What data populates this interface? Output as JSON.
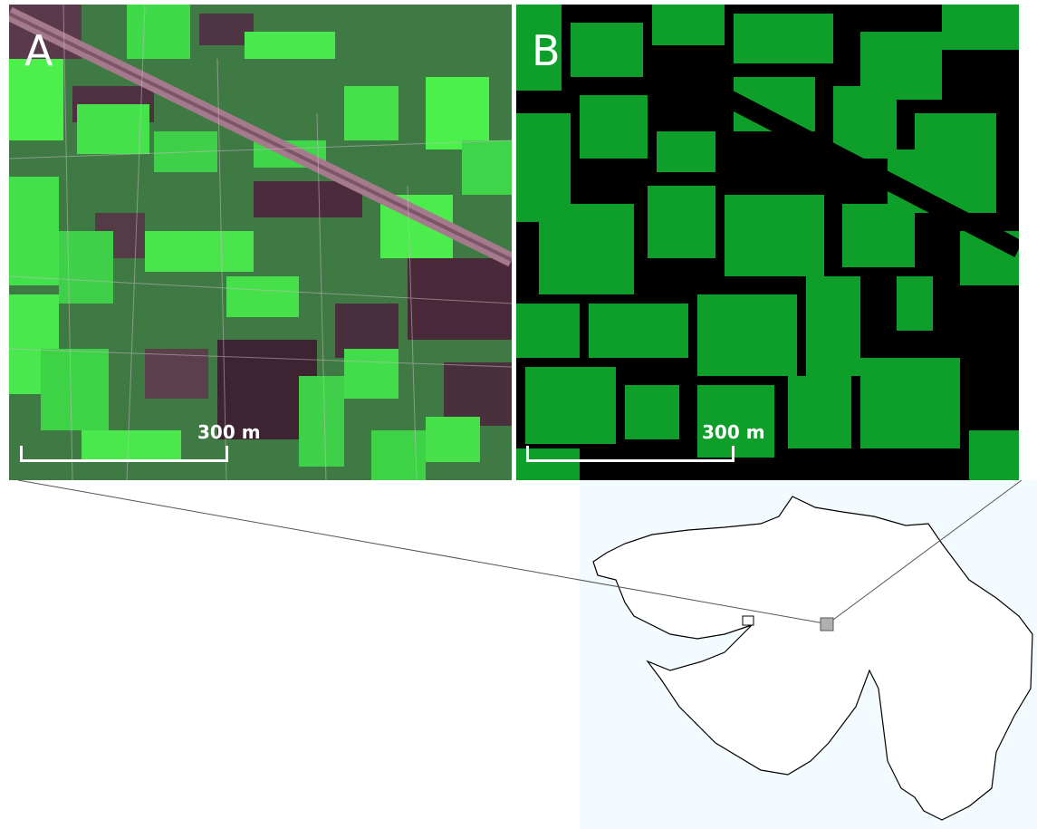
{
  "panels": {
    "a": {
      "letter": "A",
      "scale_label": "300 m"
    },
    "b": {
      "letter": "B",
      "scale_label": "300 m"
    }
  },
  "colors": {
    "crop_bright": "#4cf04a",
    "crop_mid": "#3fb94a",
    "soil_dark": "#4a2a3a",
    "mask_green": "#0e9e2a",
    "mask_black": "#000000",
    "road": "#a57a8d",
    "map_fill": "#f4fbfe"
  }
}
